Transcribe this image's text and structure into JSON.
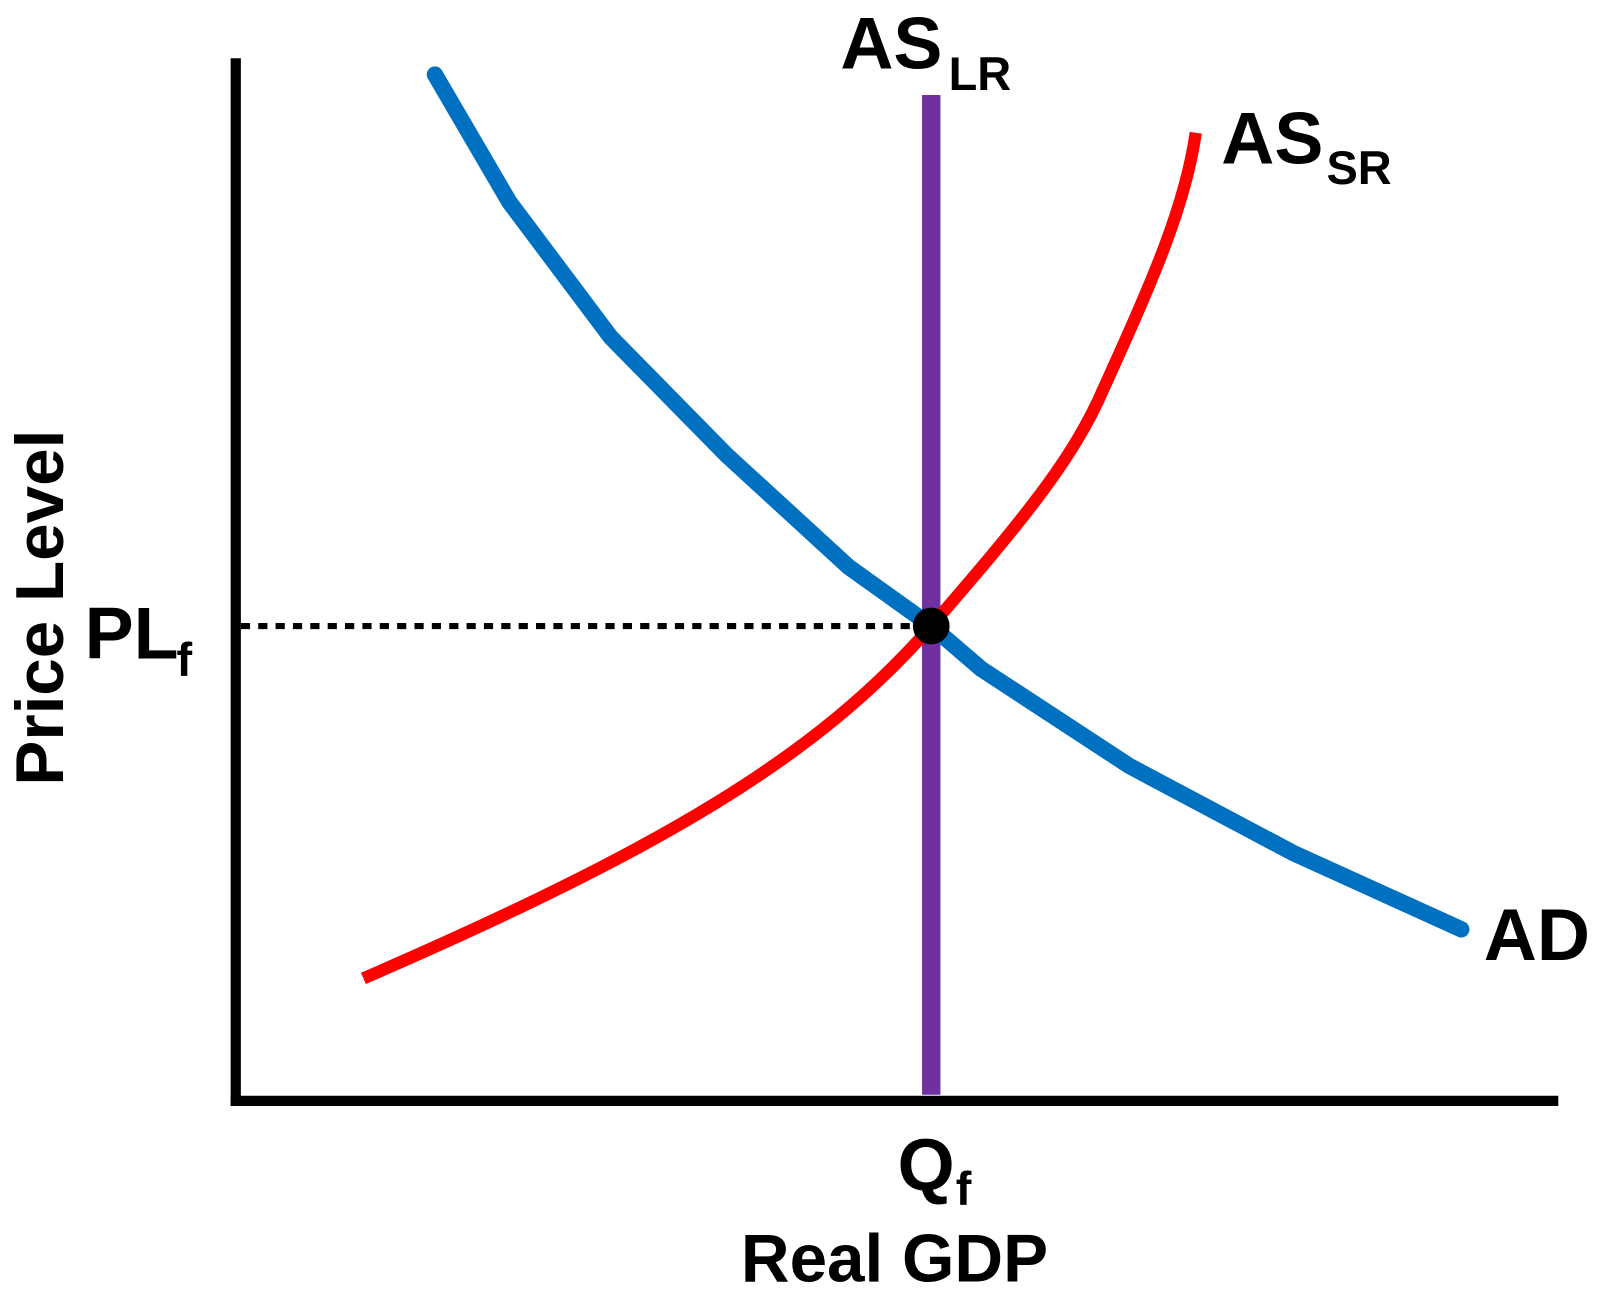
{
  "title_labels": {
    "as_lr": {
      "main": "AS",
      "sub": "LR"
    },
    "as_sr": {
      "main": "AS",
      "sub": "SR"
    },
    "ad": {
      "main": "AD"
    },
    "pl": {
      "main": "PL",
      "sub": "f"
    },
    "q": {
      "main": "Q",
      "sub": "f"
    }
  },
  "axes": {
    "x_label": "Real GDP",
    "y_label": "Price Level"
  }
}
